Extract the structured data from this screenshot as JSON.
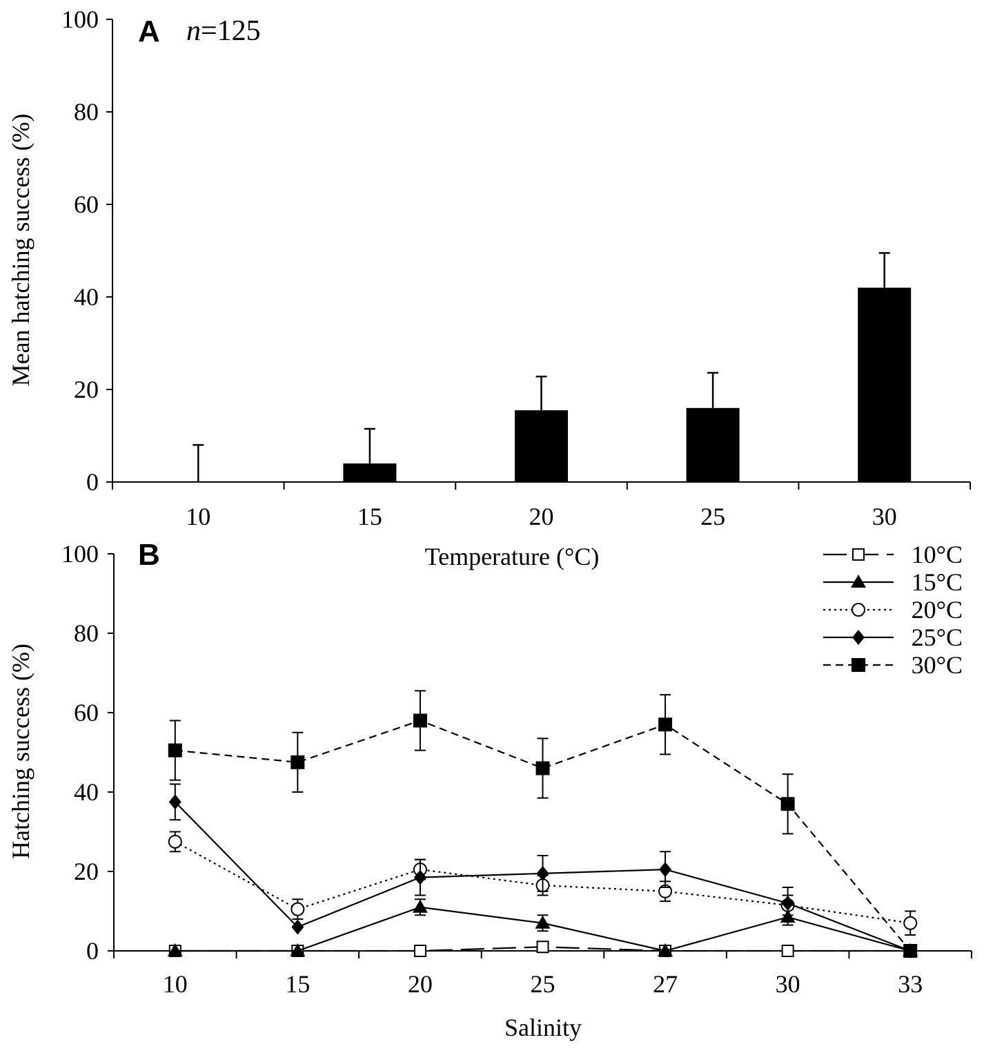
{
  "chart_data": [
    {
      "type": "bar",
      "panel": "A",
      "n_prefix": "n",
      "n_suffix": "=125",
      "xlabel": "Temperature (°C)",
      "ylabel": "Mean hatching success (%)",
      "categories": [
        "10",
        "15",
        "20",
        "25",
        "30"
      ],
      "values": [
        0,
        4,
        15.5,
        16,
        42
      ],
      "errors": [
        8,
        7.5,
        7.3,
        7.6,
        7.5
      ],
      "ylim": [
        0,
        100
      ],
      "yticks": [
        0,
        20,
        40,
        60,
        80,
        100
      ],
      "bar_color": "#000000"
    },
    {
      "type": "line",
      "panel": "B",
      "xlabel": "Salinity",
      "ylabel": "Hatching success (%)",
      "categories": [
        "10",
        "15",
        "20",
        "25",
        "27",
        "30",
        "33"
      ],
      "ylim": [
        0,
        100
      ],
      "yticks": [
        0,
        20,
        40,
        60,
        80,
        100
      ],
      "series": [
        {
          "name": "10°C",
          "marker": "open-square",
          "dash": "long-dash",
          "values": [
            0,
            0,
            0,
            1,
            0,
            0,
            0
          ],
          "errors": [
            0,
            0,
            0,
            0,
            0,
            0,
            0
          ]
        },
        {
          "name": "15°C",
          "marker": "filled-triangle",
          "dash": "solid",
          "values": [
            0,
            0,
            11,
            7,
            0,
            8.5,
            0
          ],
          "errors": [
            0,
            0,
            2,
            2,
            0,
            2,
            0
          ]
        },
        {
          "name": "20°C",
          "marker": "open-circle",
          "dash": "dotted",
          "values": [
            27.5,
            10.5,
            20.5,
            16.5,
            15,
            11.5,
            7
          ],
          "errors": [
            2.5,
            2.5,
            2.5,
            2.5,
            2.5,
            2.5,
            3
          ]
        },
        {
          "name": "25°C",
          "marker": "filled-diamond",
          "dash": "solid",
          "values": [
            37.5,
            6,
            18.5,
            19.5,
            20.5,
            12,
            0
          ],
          "errors": [
            4.5,
            0,
            4.5,
            4.5,
            4.5,
            4,
            0
          ]
        },
        {
          "name": "30°C",
          "marker": "filled-square",
          "dash": "dashed",
          "values": [
            50.5,
            47.5,
            58,
            46,
            57,
            37,
            0
          ],
          "errors": [
            7.5,
            7.5,
            7.5,
            7.5,
            7.5,
            7.5,
            0
          ]
        }
      ]
    }
  ]
}
